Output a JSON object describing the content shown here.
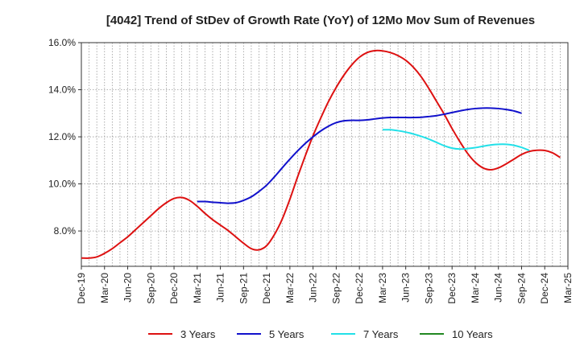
{
  "chart_data": {
    "type": "line",
    "title": "[4042]  Trend of StDev of Growth Rate (YoY) of 12Mo Mov Sum of Revenues",
    "xlabel": "",
    "ylabel": "",
    "ylim": [
      6.5,
      16.0
    ],
    "y_ticks": [
      8.0,
      10.0,
      12.0,
      14.0,
      16.0
    ],
    "y_tick_labels": [
      "8.0%",
      "10.0%",
      "12.0%",
      "14.0%",
      "16.0%"
    ],
    "x_tick_labels": [
      "Dec-19",
      "Mar-20",
      "Jun-20",
      "Sep-20",
      "Dec-20",
      "Mar-21",
      "Jun-21",
      "Sep-21",
      "Dec-21",
      "Mar-22",
      "Jun-22",
      "Sep-22",
      "Dec-22",
      "Mar-23",
      "Jun-23",
      "Sep-23",
      "Dec-23",
      "Mar-24",
      "Jun-24",
      "Sep-24",
      "Dec-24",
      "Mar-25"
    ],
    "months_total": 63,
    "grid": "vertical-dotted-monthly, horizontal-dotted",
    "legend_position": "bottom",
    "series": [
      {
        "name": "3 Years",
        "color": "#dd1111",
        "start_month": 0,
        "values": [
          6.85,
          6.85,
          6.9,
          7.05,
          7.25,
          7.5,
          7.75,
          8.05,
          8.35,
          8.65,
          8.95,
          9.2,
          9.38,
          9.42,
          9.3,
          9.05,
          8.75,
          8.48,
          8.25,
          8.02,
          7.75,
          7.48,
          7.25,
          7.2,
          7.38,
          7.85,
          8.5,
          9.35,
          10.3,
          11.2,
          12.05,
          12.8,
          13.5,
          14.1,
          14.62,
          15.05,
          15.38,
          15.58,
          15.66,
          15.65,
          15.58,
          15.45,
          15.25,
          14.95,
          14.55,
          14.05,
          13.5,
          12.95,
          12.35,
          11.8,
          11.3,
          10.92,
          10.68,
          10.6,
          10.68,
          10.85,
          11.05,
          11.25,
          11.38,
          11.43,
          11.42,
          11.32,
          11.12
        ]
      },
      {
        "name": "5 Years",
        "color": "#1111cc",
        "start_month": 15,
        "values": [
          9.25,
          9.25,
          9.22,
          9.2,
          9.18,
          9.2,
          9.3,
          9.45,
          9.68,
          9.95,
          10.3,
          10.68,
          11.05,
          11.4,
          11.72,
          12.0,
          12.25,
          12.45,
          12.6,
          12.68,
          12.7,
          12.7,
          12.72,
          12.76,
          12.8,
          12.82,
          12.82,
          12.82,
          12.82,
          12.83,
          12.86,
          12.9,
          12.96,
          13.03,
          13.1,
          13.16,
          13.2,
          13.22,
          13.22,
          13.2,
          13.16,
          13.1,
          13.0
        ]
      },
      {
        "name": "7 Years",
        "color": "#22e0e8",
        "start_month": 39,
        "values": [
          12.3,
          12.3,
          12.26,
          12.2,
          12.12,
          12.02,
          11.9,
          11.76,
          11.62,
          11.52,
          11.48,
          11.5,
          11.54,
          11.6,
          11.65,
          11.68,
          11.68,
          11.64,
          11.55,
          11.42
        ]
      },
      {
        "name": "10 Years",
        "color": "#228822",
        "start_month": 0,
        "values": []
      }
    ]
  }
}
